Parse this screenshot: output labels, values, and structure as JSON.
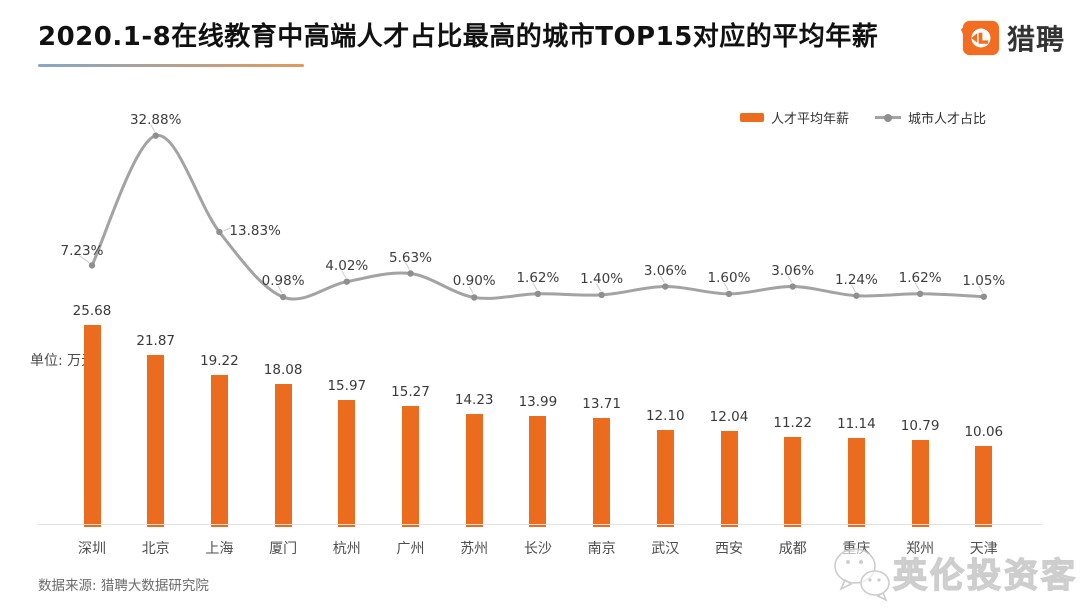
{
  "header": {
    "title": "2020.1-8在线教育中高端人才占比最高的城市TOP15对应的平均年薪",
    "brand_name": "猎聘"
  },
  "legend": {
    "bar_label": "人才平均年薪",
    "line_label": "城市人才占比"
  },
  "unit_label": "单位: 万元",
  "source_note": "数据来源: 猎聘大数据研究院",
  "watermark_text": "英伦投资客",
  "colors": {
    "bar": "#ec6c1f",
    "line": "#a3a3a3",
    "line_dot": "#8f8f8f",
    "brand_orange": "#f26d21",
    "underline_start": "#86a7c4",
    "underline_end": "#e09a5d"
  },
  "chart_data": {
    "type": "bar+line",
    "title": "2020.1-8在线教育中高端人才占比最高的城市TOP15对应的平均年薪",
    "categories": [
      "深圳",
      "北京",
      "上海",
      "厦门",
      "杭州",
      "广州",
      "苏州",
      "长沙",
      "南京",
      "武汉",
      "西安",
      "成都",
      "重庆",
      "郑州",
      "天津"
    ],
    "series": [
      {
        "name": "人才平均年薪",
        "type": "bar",
        "unit": "万元",
        "color": "#ec6c1f",
        "values": [
          25.68,
          21.87,
          19.22,
          18.08,
          15.97,
          15.27,
          14.23,
          13.99,
          13.71,
          12.1,
          12.04,
          11.22,
          11.14,
          10.79,
          10.06
        ]
      },
      {
        "name": "城市人才占比",
        "type": "line",
        "unit": "%",
        "color": "#a3a3a3",
        "values": [
          7.23,
          32.88,
          13.83,
          0.98,
          4.02,
          5.63,
          0.9,
          1.62,
          1.4,
          3.06,
          1.6,
          3.06,
          1.24,
          1.62,
          1.05
        ]
      }
    ],
    "ylabel": "单位: 万元",
    "grid": false,
    "legend_position": "top-right",
    "value_labels_visible": true,
    "axes_visible": false
  }
}
